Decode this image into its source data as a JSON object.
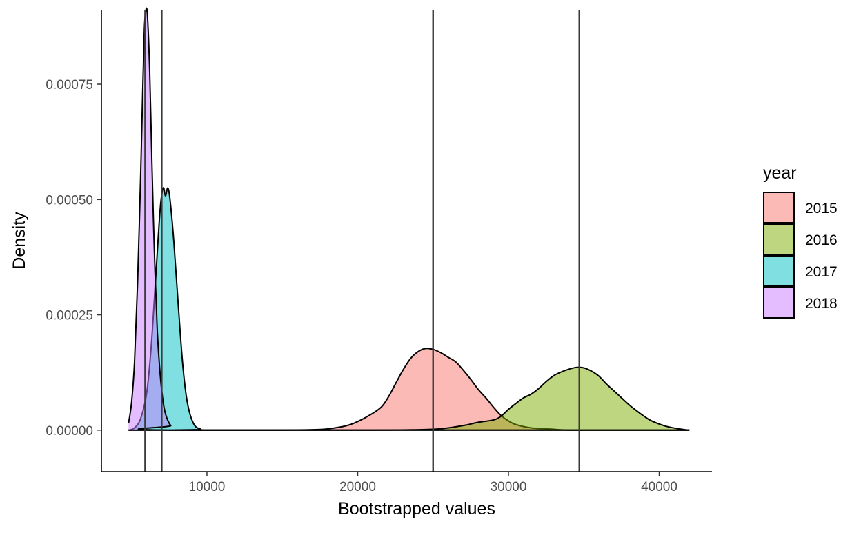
{
  "chart_data": {
    "type": "area",
    "subtype": "density",
    "title": "",
    "xlabel": "Bootstrapped values",
    "ylabel": "Density",
    "xlim": [
      3000,
      43500
    ],
    "ylim": [
      -9e-05,
      0.00091
    ],
    "xticks": [
      10000,
      20000,
      30000,
      40000
    ],
    "xtick_labels": [
      "10000",
      "20000",
      "30000",
      "40000"
    ],
    "yticks": [
      0,
      0.00025,
      0.0005,
      0.00075
    ],
    "ytick_labels": [
      "0.00000",
      "0.00025",
      "0.00050",
      "0.00075"
    ],
    "grid": false,
    "legend": {
      "title": "year",
      "position": "right"
    },
    "fill_opacity": 0.5,
    "series": [
      {
        "name": "2015",
        "color": "#F8766D",
        "mean": 25000,
        "points": [
          [
            4800,
            0
          ],
          [
            12000,
            0
          ],
          [
            17000,
            1e-06
          ],
          [
            18500,
            5e-06
          ],
          [
            19500,
            1.2e-05
          ],
          [
            20500,
            2.7e-05
          ],
          [
            21500,
            4.8e-05
          ],
          [
            22000,
            7e-05
          ],
          [
            22500,
            0.0001
          ],
          [
            23000,
            0.00013
          ],
          [
            23500,
            0.000155
          ],
          [
            24000,
            0.00017
          ],
          [
            24500,
            0.000177
          ],
          [
            25000,
            0.000175
          ],
          [
            25500,
            0.000168
          ],
          [
            26000,
            0.000158
          ],
          [
            26500,
            0.000148
          ],
          [
            27000,
            0.00013
          ],
          [
            27500,
            0.00011
          ],
          [
            28000,
            8.8e-05
          ],
          [
            28500,
            7e-05
          ],
          [
            29000,
            5e-05
          ],
          [
            29500,
            3.2e-05
          ],
          [
            30000,
            2e-05
          ],
          [
            30500,
            1.2e-05
          ],
          [
            31500,
            5e-06
          ],
          [
            33000,
            2e-06
          ],
          [
            34500,
            0
          ],
          [
            42000,
            0
          ]
        ]
      },
      {
        "name": "2016",
        "color": "#7CAE00",
        "mean": 34700,
        "points": [
          [
            4800,
            0
          ],
          [
            20000,
            0
          ],
          [
            24000,
            1e-06
          ],
          [
            25500,
            3e-06
          ],
          [
            27000,
            1e-05
          ],
          [
            28000,
            1.7e-05
          ],
          [
            29000,
            2.2e-05
          ],
          [
            29500,
            3e-05
          ],
          [
            30000,
            4.5e-05
          ],
          [
            30500,
            5.8e-05
          ],
          [
            31000,
            7e-05
          ],
          [
            31500,
            7.8e-05
          ],
          [
            32000,
            9e-05
          ],
          [
            32500,
            0.000105
          ],
          [
            33000,
            0.000118
          ],
          [
            33500,
            0.000126
          ],
          [
            34000,
            0.000132
          ],
          [
            34500,
            0.000136
          ],
          [
            35000,
            0.000135
          ],
          [
            35500,
            0.000128
          ],
          [
            36000,
            0.000117
          ],
          [
            36500,
            0.0001
          ],
          [
            37000,
            8.5e-05
          ],
          [
            37500,
            7e-05
          ],
          [
            38000,
            5.5e-05
          ],
          [
            38500,
            4.2e-05
          ],
          [
            39000,
            3e-05
          ],
          [
            39500,
            2e-05
          ],
          [
            40500,
            8e-06
          ],
          [
            41500,
            2e-06
          ],
          [
            42000,
            0
          ]
        ]
      },
      {
        "name": "2017",
        "color": "#00BFC4",
        "mean": 7000,
        "points": [
          [
            4800,
            0
          ],
          [
            5200,
            5e-06
          ],
          [
            5600,
            2.5e-05
          ],
          [
            6000,
            8e-05
          ],
          [
            6300,
            0.00018
          ],
          [
            6600,
            0.00033
          ],
          [
            6900,
            0.00048
          ],
          [
            7100,
            0.000525
          ],
          [
            7250,
            0.000508
          ],
          [
            7400,
            0.000525
          ],
          [
            7550,
            0.0005
          ],
          [
            7800,
            0.00041
          ],
          [
            8100,
            0.00027
          ],
          [
            8400,
            0.00014
          ],
          [
            8700,
            6e-05
          ],
          [
            9100,
            1.5e-05
          ],
          [
            9600,
            2e-06
          ],
          [
            10500,
            0
          ],
          [
            42000,
            0
          ]
        ]
      },
      {
        "name": "2018",
        "color": "#C77CFF",
        "mean": 5900,
        "points": [
          [
            4800,
            1.5e-05
          ],
          [
            5000,
            6e-05
          ],
          [
            5200,
            0.00015
          ],
          [
            5400,
            0.00032
          ],
          [
            5600,
            0.00055
          ],
          [
            5750,
            0.00075
          ],
          [
            5850,
            0.00087
          ],
          [
            5950,
            0.00091
          ],
          [
            6050,
            0.0009
          ],
          [
            6200,
            0.00078
          ],
          [
            6350,
            0.00058
          ],
          [
            6500,
            0.0004
          ],
          [
            6700,
            0.00022
          ],
          [
            6900,
            0.00012
          ],
          [
            7100,
            6e-05
          ],
          [
            7300,
            3e-05
          ],
          [
            7600,
            1e-05
          ],
          [
            8100,
            0
          ],
          [
            42000,
            0
          ]
        ]
      }
    ]
  }
}
